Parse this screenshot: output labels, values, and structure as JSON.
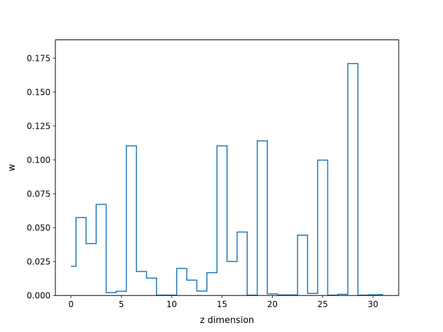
{
  "chart_data": {
    "type": "line",
    "drawstyle": "steps-mid",
    "title": "",
    "xlabel": "z dimension",
    "ylabel": "w",
    "xlim": [
      -1.55,
      32.55
    ],
    "ylim": [
      0,
      0.1885
    ],
    "xticks": [
      0,
      5,
      10,
      15,
      20,
      25,
      30
    ],
    "yticks": [
      0.0,
      0.025,
      0.05,
      0.075,
      0.1,
      0.125,
      0.15,
      0.175
    ],
    "ytick_labels": [
      "0.000",
      "0.025",
      "0.050",
      "0.075",
      "0.100",
      "0.125",
      "0.150",
      "0.175"
    ],
    "grid": false,
    "legend": null,
    "series": [
      {
        "color": "#1f77b4",
        "x": [
          0,
          1,
          2,
          3,
          4,
          5,
          6,
          7,
          8,
          9,
          10,
          11,
          12,
          13,
          14,
          15,
          16,
          17,
          18,
          19,
          20,
          21,
          22,
          23,
          24,
          25,
          26,
          27,
          28,
          29,
          30,
          31
        ],
        "y": [
          0.0215,
          0.0575,
          0.0382,
          0.0672,
          0.0021,
          0.0031,
          0.1103,
          0.0177,
          0.0128,
          0.0003,
          0.0002,
          0.0199,
          0.0113,
          0.0033,
          0.0168,
          0.1103,
          0.0251,
          0.0468,
          0.0002,
          0.114,
          0.0012,
          0.0004,
          0.0004,
          0.0445,
          0.0015,
          0.0998,
          0.0002,
          0.0009,
          0.171,
          0.0002,
          0.0005,
          0.0007
        ]
      }
    ]
  }
}
